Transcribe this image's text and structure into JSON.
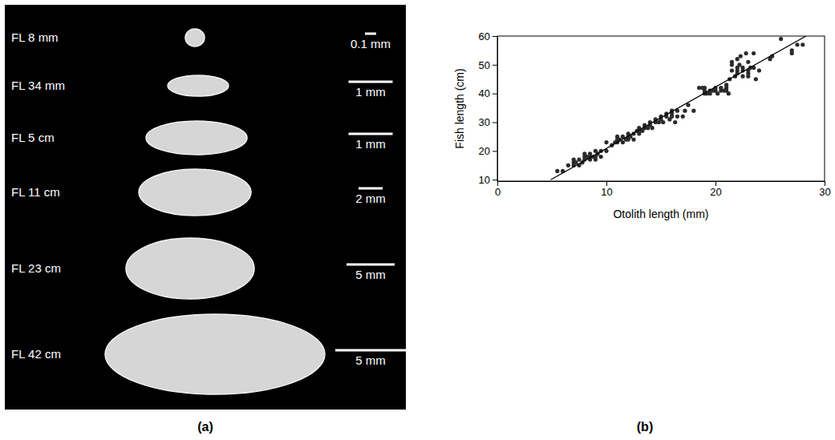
{
  "panel_a": {
    "caption": "(a)",
    "items": [
      {
        "fish_length": "FL 8 mm",
        "scale_bar": "0.1 mm"
      },
      {
        "fish_length": "FL 34 mm",
        "scale_bar": "1 mm"
      },
      {
        "fish_length": "FL 5 cm",
        "scale_bar": "1 mm"
      },
      {
        "fish_length": "FL 11 cm",
        "scale_bar": "2 mm"
      },
      {
        "fish_length": "FL 23 cm",
        "scale_bar": "5 mm"
      },
      {
        "fish_length": "FL 42 cm",
        "scale_bar": "5 mm"
      }
    ]
  },
  "chart_data": {
    "type": "scatter",
    "caption": "(b)",
    "x_label": "Otolith length (mm)",
    "y_label": "Fish length (cm)",
    "xlim": [
      0,
      30
    ],
    "xticks": [
      0,
      10,
      20,
      30
    ],
    "ylim": [
      9.5,
      60
    ],
    "yticks": [
      10,
      20,
      30,
      40,
      50,
      60
    ],
    "grid": false,
    "series": [
      {
        "type": "scatter",
        "marker": "circle",
        "color": "#2b2b2b",
        "x": [
          5.5,
          6,
          6.5,
          7,
          7,
          7,
          7.2,
          7.5,
          7.5,
          7.8,
          8,
          8,
          8,
          8.2,
          8.5,
          8.5,
          8.5,
          8.8,
          9,
          9,
          9,
          9.2,
          9.5,
          9.5,
          10,
          10,
          10.5,
          10.8,
          11,
          11,
          11,
          11.2,
          11.5,
          11.5,
          11.8,
          12,
          12,
          12,
          12.2,
          12.5,
          12.5,
          12.8,
          13,
          13,
          13,
          13.3,
          13.5,
          13.5,
          13.8,
          14,
          14,
          14.2,
          14.5,
          14.5,
          14.8,
          15,
          15,
          15.2,
          15.5,
          15.5,
          15.8,
          16,
          16,
          16,
          16.3,
          16.5,
          16.5,
          17,
          17.2,
          17.5,
          18,
          18.5,
          18.8,
          19,
          19,
          19,
          19.2,
          19.5,
          19.5,
          19.8,
          20,
          20,
          20.2,
          20.5,
          20.5,
          20.8,
          21,
          21,
          21.2,
          21,
          21.3,
          21.5,
          21.5,
          21.8,
          21.5,
          22,
          22,
          22,
          22,
          22.2,
          22.3,
          22.5,
          22.5,
          22.5,
          22.8,
          23,
          23,
          23,
          23,
          23.2,
          23.5,
          23.5,
          23.7,
          24,
          25,
          25.2,
          26,
          27,
          27.5,
          28,
          27
        ],
        "values": [
          13,
          13,
          15,
          15,
          16,
          17,
          16,
          17,
          15,
          16,
          17,
          18,
          19,
          18,
          17,
          18,
          19,
          18,
          18,
          17,
          20,
          19,
          18,
          20,
          20,
          23,
          22,
          23,
          23,
          24,
          25,
          24,
          23,
          25,
          24,
          24,
          25,
          26,
          25,
          24,
          26,
          27,
          26,
          27,
          28,
          27,
          28,
          29,
          28,
          29,
          30,
          28,
          30,
          31,
          30,
          31,
          32,
          30,
          32,
          33,
          31,
          32,
          33,
          34,
          30,
          34,
          32,
          32,
          34,
          36,
          34,
          42,
          42,
          40,
          41,
          42,
          40,
          41,
          40,
          41,
          41,
          42,
          40,
          41,
          42,
          41,
          41,
          42,
          40,
          43,
          45,
          48,
          50,
          46,
          51,
          47,
          48,
          49,
          52,
          50,
          53,
          46,
          48,
          49,
          54,
          47,
          48,
          46,
          51,
          49,
          49,
          54,
          45,
          48,
          52,
          53,
          59,
          55,
          57,
          57,
          54
        ]
      },
      {
        "type": "line",
        "line_style": "solid",
        "color": "#000000",
        "x": [
          4.9,
          28.3
        ],
        "values": [
          10,
          60
        ]
      }
    ]
  }
}
